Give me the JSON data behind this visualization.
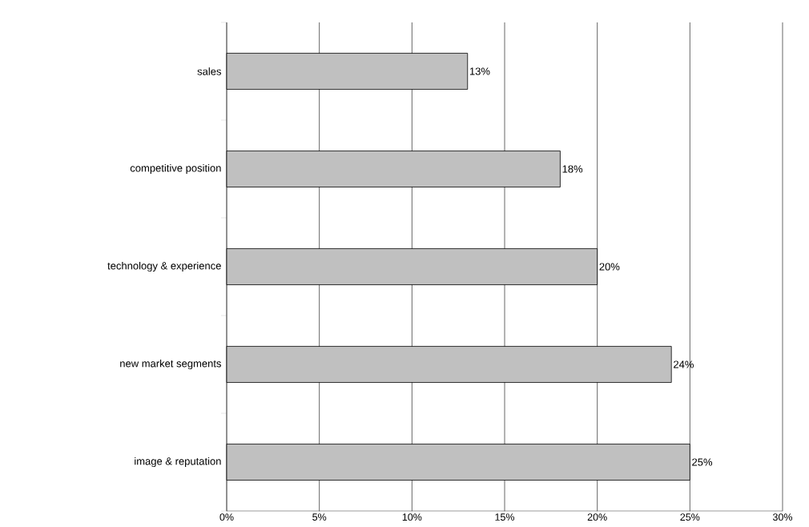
{
  "chart_data": {
    "type": "bar",
    "orientation": "horizontal",
    "categories": [
      "sales",
      "competitive position",
      "technology & experience",
      "new market segments",
      "image & reputation"
    ],
    "values": [
      13,
      18,
      20,
      24,
      25
    ],
    "color": "#c0c0c0",
    "value_labels": [
      "13%",
      "18%",
      "20%",
      "24%",
      "25%"
    ],
    "xlim": [
      0,
      30
    ],
    "xticks": [
      {
        "value": 0,
        "label": "0%"
      },
      {
        "value": 5,
        "label": "5%"
      },
      {
        "value": 10,
        "label": "10%"
      },
      {
        "value": 15,
        "label": "15%"
      },
      {
        "value": 20,
        "label": "20%"
      },
      {
        "value": 25,
        "label": "25%"
      },
      {
        "value": 30,
        "label": "30%"
      }
    ],
    "grid": "x"
  }
}
